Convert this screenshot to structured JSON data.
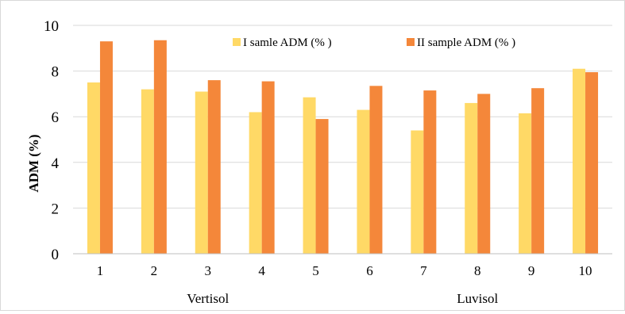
{
  "chart_data": {
    "type": "bar",
    "title": "",
    "xlabel": "",
    "ylabel": "ADM (%)",
    "categories": [
      "1",
      "2",
      "3",
      "4",
      "5",
      "6",
      "7",
      "8",
      "9",
      "10"
    ],
    "group_labels": [
      "Vertisol",
      "Luvisol"
    ],
    "ylim": [
      0,
      10
    ],
    "yticks": [
      "0",
      "2",
      "4",
      "6",
      "8",
      "10"
    ],
    "grid": true,
    "legend_position": "top-center",
    "series": [
      {
        "name": "I samle ADM (% )",
        "color": "#FFD966",
        "values": [
          7.5,
          7.2,
          7.1,
          6.2,
          6.85,
          6.3,
          5.4,
          6.6,
          6.15,
          8.1
        ]
      },
      {
        "name": "II sample ADM (% )",
        "color": "#F4873A",
        "values": [
          9.3,
          9.35,
          7.6,
          7.55,
          5.9,
          7.35,
          7.15,
          7.0,
          7.25,
          7.95
        ]
      }
    ]
  }
}
